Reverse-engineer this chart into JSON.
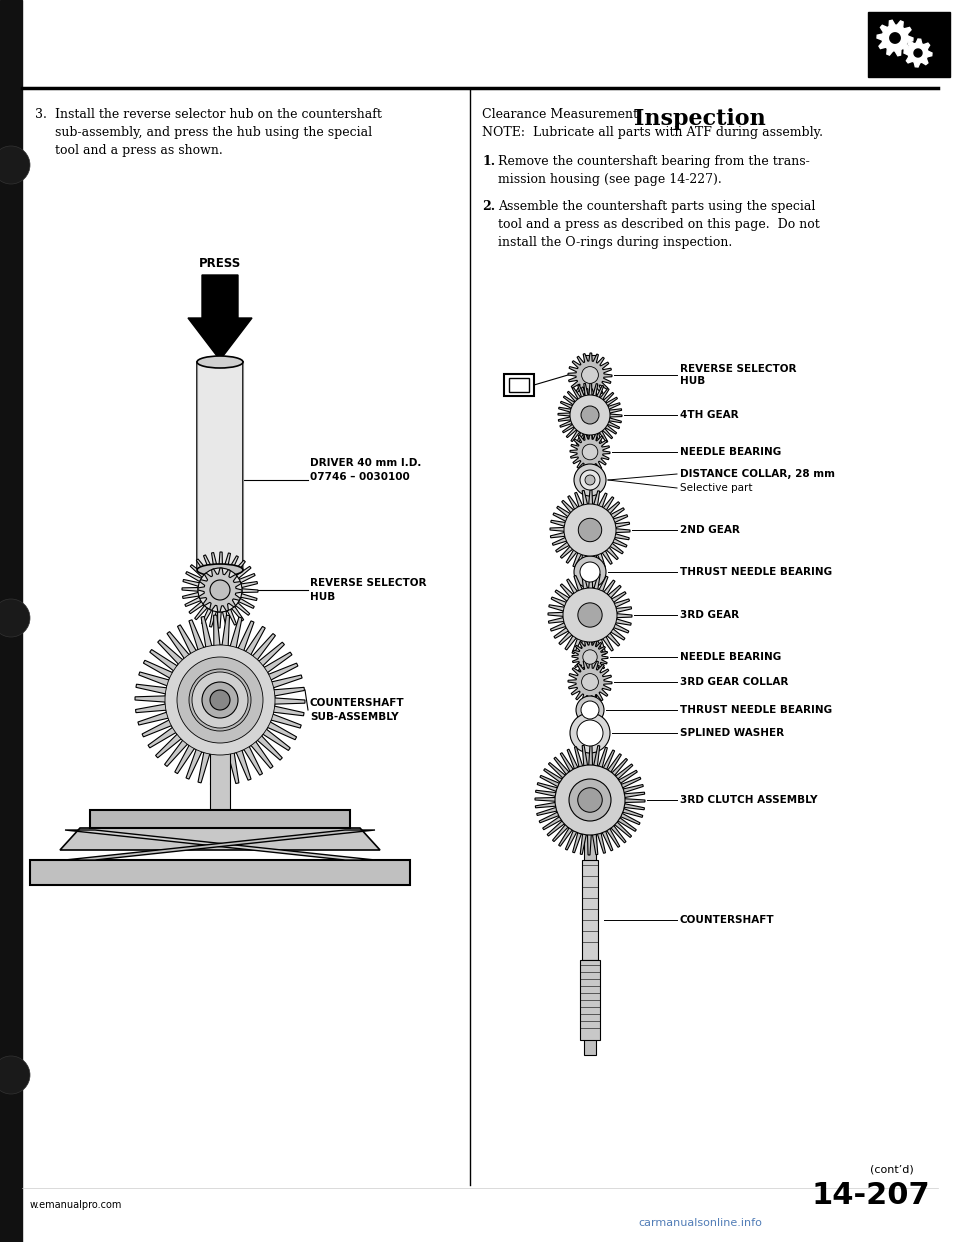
{
  "page_color": "#ffffff",
  "title_inspection": "Inspection",
  "clearance_title": "Clearance Measurement",
  "note_text": "NOTE:  Lubricate all parts with ATF during assembly.",
  "step1_text": "Remove the countershaft bearing from the trans-\nmission housing (see page 14-227).",
  "step2_text": "Assemble the countershaft parts using the special\ntool and a press as described on this page.  Do not\ninstall the O-rings during inspection.",
  "left_step_text": "Install the reverse selector hub on the countershaft\nsub-assembly, and press the hub using the special\ntool and a press as shown.",
  "label_press": "PRESS",
  "label_driver": "DRIVER 40 mm I.D.\n07746 – 0030100",
  "label_rev_hub": "REVERSE SELECTOR\nHUB",
  "label_countershaft_sub": "COUNTERSHAFT\nSUB-ASSEMBLY",
  "right_labels": [
    "REVERSE SELECTOR\nHUB",
    "4TH GEAR",
    "NEEDLE BEARING",
    "DISTANCE COLLAR, 28 mm",
    "Selective part",
    "2ND GEAR",
    "THRUST NEEDLE BEARING",
    "3RD GEAR",
    "NEEDLE BEARING",
    "3RD GEAR COLLAR",
    "THRUST NEEDLE BEARING",
    "SPLINED WASHER",
    "3RD CLUTCH ASSEMBLY",
    "COUNTERSHAFT"
  ],
  "footer_left": "w.emanualpro.com",
  "footer_page": "14-207",
  "footer_watermark": "carmanualsonline.info",
  "contd": "(cont’d)"
}
